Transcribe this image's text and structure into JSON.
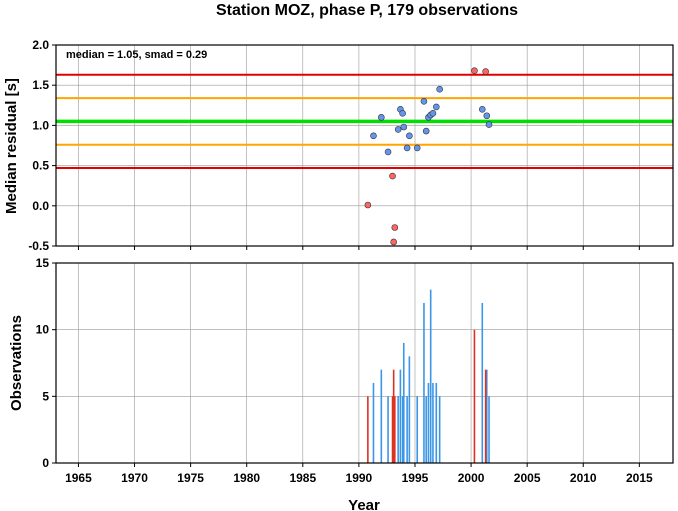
{
  "chart_data": {
    "title": "Station MOZ, phase P, 179 observations",
    "xlabel": "Year",
    "xlim": [
      1963,
      2018
    ],
    "xticks": [
      1965,
      1970,
      1975,
      1980,
      1985,
      1990,
      1995,
      2000,
      2005,
      2010,
      2015
    ],
    "grid": true,
    "panels": [
      {
        "type": "scatter",
        "ylabel": "Median residual [s]",
        "ylim": [
          -0.5,
          2.0
        ],
        "yticks": [
          "-0.5",
          "0.0",
          "0.5",
          "1.0",
          "1.5",
          "2.0"
        ],
        "annotation": "median = 1.05, smad = 0.29",
        "hlines": [
          {
            "y": 1.05,
            "color": "#00e000"
          },
          {
            "y": 1.34,
            "color": "#ffa500"
          },
          {
            "y": 0.76,
            "color": "#ffa500"
          },
          {
            "y": 1.63,
            "color": "#e00000"
          },
          {
            "y": 0.47,
            "color": "#e00000"
          }
        ],
        "series": [
          {
            "color": "#6495ed",
            "points": [
              [
                1991.3,
                0.87
              ],
              [
                1992.0,
                1.1
              ],
              [
                1992.6,
                0.67
              ],
              [
                1993.5,
                0.95
              ],
              [
                1993.7,
                1.2
              ],
              [
                1993.9,
                1.15
              ],
              [
                1994.0,
                0.98
              ],
              [
                1994.3,
                0.72
              ],
              [
                1994.5,
                0.87
              ],
              [
                1995.2,
                0.72
              ],
              [
                1995.8,
                1.3
              ],
              [
                1996.0,
                0.93
              ],
              [
                1996.2,
                1.1
              ],
              [
                1996.4,
                1.13
              ],
              [
                1996.6,
                1.15
              ],
              [
                1996.9,
                1.23
              ],
              [
                1997.2,
                1.45
              ],
              [
                2001.0,
                1.2
              ],
              [
                2001.4,
                1.12
              ],
              [
                2001.6,
                1.01
              ]
            ]
          },
          {
            "color": "#ff6464",
            "points": [
              [
                1990.8,
                0.01
              ],
              [
                1993.0,
                0.37
              ],
              [
                1993.1,
                -0.45
              ],
              [
                1993.2,
                -0.27
              ],
              [
                2000.3,
                1.68
              ],
              [
                2001.3,
                1.67
              ]
            ]
          }
        ]
      },
      {
        "type": "bar",
        "ylabel": "Observations",
        "ylim": [
          0,
          15
        ],
        "yticks": [
          "0",
          "5",
          "10",
          "15"
        ],
        "series": [
          {
            "color": "#3c96e8",
            "bars": [
              [
                1991.3,
                6
              ],
              [
                1992.0,
                7
              ],
              [
                1992.6,
                5
              ],
              [
                1993.5,
                5
              ],
              [
                1993.7,
                7
              ],
              [
                1993.9,
                5
              ],
              [
                1994.0,
                9
              ],
              [
                1994.3,
                5
              ],
              [
                1994.5,
                8
              ],
              [
                1995.2,
                5
              ],
              [
                1995.8,
                12
              ],
              [
                1996.0,
                5
              ],
              [
                1996.2,
                6
              ],
              [
                1996.4,
                13
              ],
              [
                1996.6,
                6
              ],
              [
                1996.9,
                6
              ],
              [
                1997.2,
                5
              ],
              [
                2001.0,
                12
              ],
              [
                2001.4,
                7
              ],
              [
                2001.6,
                5
              ]
            ]
          },
          {
            "color": "#e03020",
            "bars": [
              [
                1990.8,
                5
              ],
              [
                1993.0,
                5
              ],
              [
                1993.1,
                7
              ],
              [
                1993.2,
                5
              ],
              [
                2000.3,
                10
              ],
              [
                2001.3,
                7
              ]
            ]
          }
        ]
      }
    ]
  }
}
